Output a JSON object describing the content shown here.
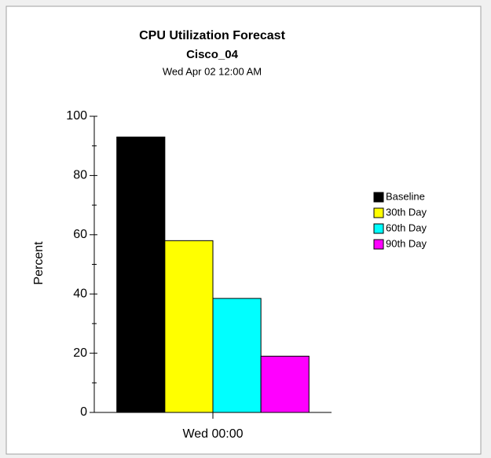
{
  "chart_data": {
    "type": "bar",
    "title": "CPU Utilization Forecast",
    "subtitle": "Cisco_04",
    "date": "Wed Apr 02 12:00 AM",
    "y_label": "Percent",
    "categories": [
      "Wed 00:00"
    ],
    "series": [
      {
        "name": "Baseline",
        "color": "#000000",
        "values": [
          93
        ]
      },
      {
        "name": "30th Day",
        "color": "#ffff00",
        "values": [
          58
        ]
      },
      {
        "name": "60th Day",
        "color": "#00ffff",
        "values": [
          38.5
        ]
      },
      {
        "name": "90th Day",
        "color": "#ff00ff",
        "values": [
          19
        ]
      }
    ],
    "ylim": [
      0,
      100
    ],
    "yticks": [
      0,
      20,
      40,
      60,
      80,
      100
    ],
    "grid": false,
    "legend": "right"
  }
}
